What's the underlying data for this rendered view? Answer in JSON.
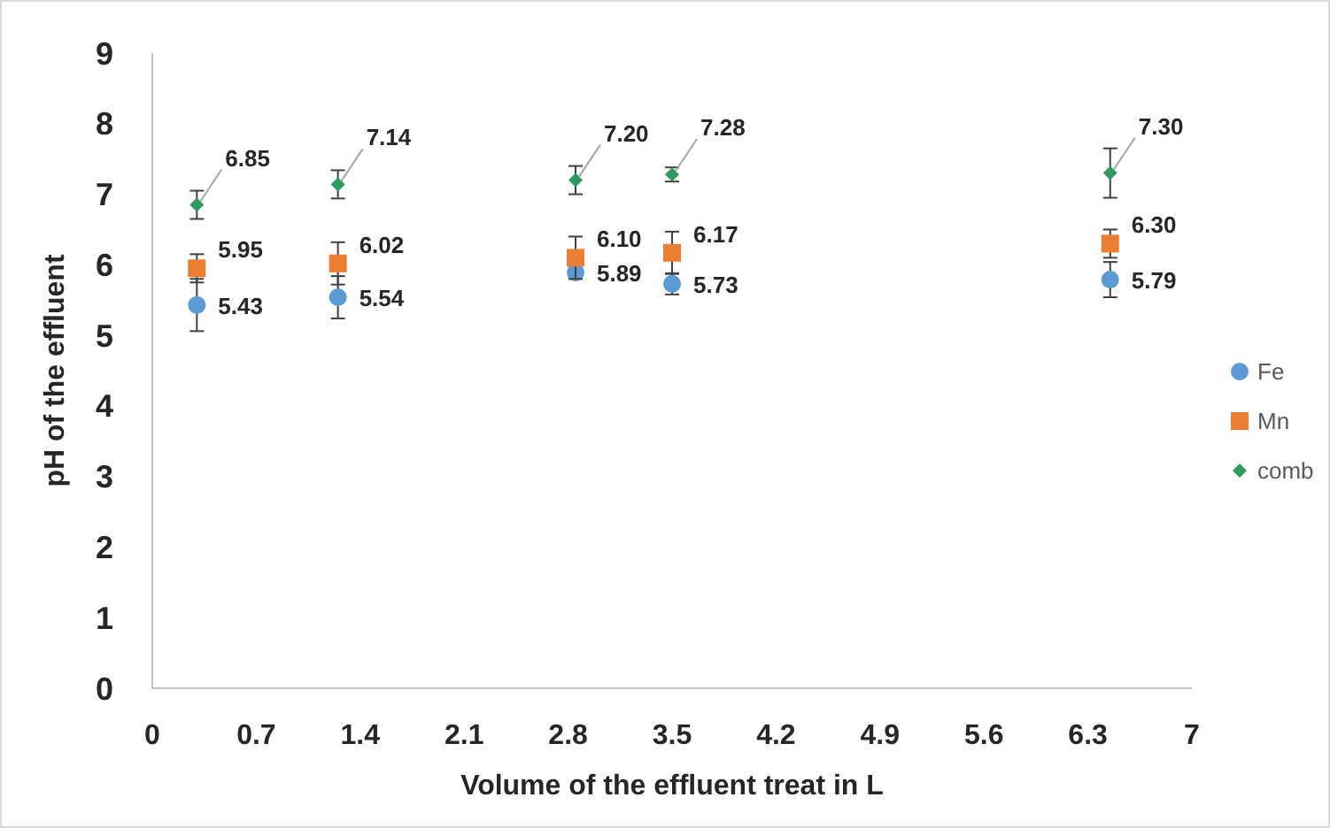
{
  "chart_data": {
    "type": "scatter",
    "xlabel": "Volume of the effluent treat in L",
    "ylabel": "pH of the effluent",
    "xlim": [
      0,
      7
    ],
    "xticks": [
      0,
      0.7,
      1.4,
      2.1,
      2.8,
      3.5,
      4.2,
      4.9,
      5.6,
      6.3,
      7
    ],
    "ylim": [
      0,
      9
    ],
    "yticks": [
      0,
      1,
      2,
      3,
      4,
      5,
      6,
      7,
      8,
      9
    ],
    "grid": false,
    "legend": "right",
    "series": [
      {
        "name": "Fe",
        "color": "#5b9bd5",
        "marker": "circle",
        "x": [
          0.3,
          1.25,
          2.85,
          3.5,
          6.45
        ],
        "values": [
          5.43,
          5.54,
          5.89,
          5.73,
          5.79
        ],
        "value_labels": [
          "5.43",
          "5.54",
          "5.89",
          "5.73",
          "5.79"
        ],
        "errors": [
          0.37,
          0.3,
          0.05,
          0.15,
          0.25
        ]
      },
      {
        "name": "Mn",
        "color": "#ed7d31",
        "marker": "square",
        "x": [
          0.3,
          1.25,
          2.85,
          3.5,
          6.45
        ],
        "values": [
          5.95,
          6.02,
          6.1,
          6.17,
          6.3
        ],
        "value_labels": [
          "5.95",
          "6.02",
          "6.10",
          "6.17",
          "6.30"
        ],
        "errors": [
          0.2,
          0.3,
          0.3,
          0.3,
          0.2
        ]
      },
      {
        "name": "comb",
        "color": "#2e9b5e",
        "marker": "diamond",
        "x": [
          0.3,
          1.25,
          2.85,
          3.5,
          6.45
        ],
        "values": [
          6.85,
          7.14,
          7.2,
          7.28,
          7.3
        ],
        "value_labels": [
          "6.85",
          "7.14",
          "7.20",
          "7.28",
          "7.30"
        ],
        "errors": [
          0.2,
          0.2,
          0.2,
          0.1,
          0.35
        ]
      }
    ]
  }
}
